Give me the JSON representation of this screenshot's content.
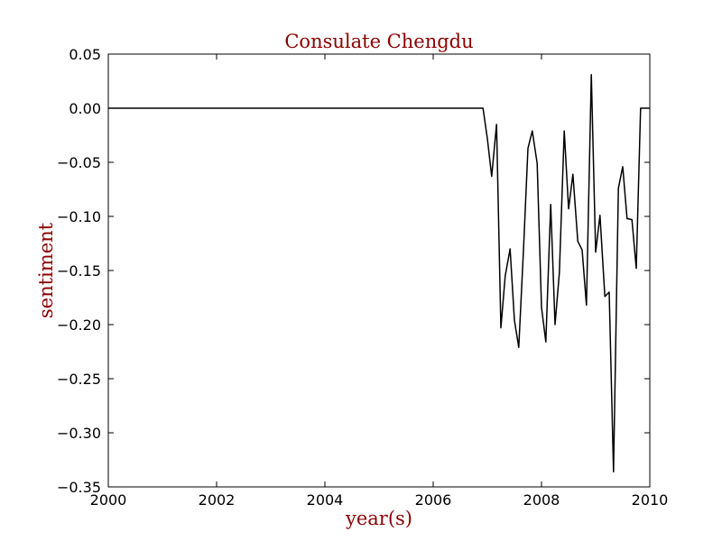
{
  "chart_data": {
    "type": "line",
    "title": "Consulate Chengdu",
    "xlabel": "year(s)",
    "ylabel": "sentiment",
    "xlim": [
      2000,
      2010
    ],
    "ylim": [
      -0.35,
      0.05
    ],
    "x_ticks": [
      2000,
      2002,
      2004,
      2006,
      2008,
      2010
    ],
    "x_tick_labels": [
      "2000",
      "2002",
      "2004",
      "2006",
      "2008",
      "2010"
    ],
    "y_ticks": [
      0.05,
      0.0,
      -0.05,
      -0.1,
      -0.15,
      -0.2,
      -0.25,
      -0.3,
      -0.35
    ],
    "y_tick_labels": [
      "0.05",
      "0.00",
      "−0.05",
      "−0.10",
      "−0.15",
      "−0.20",
      "−0.25",
      "−0.30",
      "−0.35"
    ],
    "grid": false,
    "line_color": "#000000",
    "label_color": "#8b0000",
    "series": [
      {
        "x": [
          2000.0,
          2006.92,
          2007.0,
          2007.08,
          2007.17,
          2007.25,
          2007.33,
          2007.42,
          2007.5,
          2007.58,
          2007.67,
          2007.75,
          2007.83,
          2007.92,
          2008.0,
          2008.08,
          2008.17,
          2008.25,
          2008.33,
          2008.42,
          2008.5,
          2008.58,
          2008.67,
          2008.75,
          2008.83,
          2008.92,
          2009.0,
          2009.08,
          2009.17,
          2009.25,
          2009.33,
          2009.42,
          2009.5,
          2009.58,
          2009.67,
          2009.75,
          2009.83,
          2009.92,
          2010.0
        ],
        "y": [
          0.0,
          0.0,
          -0.028,
          -0.063,
          -0.015,
          -0.203,
          -0.155,
          -0.13,
          -0.196,
          -0.221,
          -0.128,
          -0.037,
          -0.021,
          -0.051,
          -0.184,
          -0.216,
          -0.089,
          -0.2,
          -0.152,
          -0.021,
          -0.093,
          -0.061,
          -0.123,
          -0.131,
          -0.182,
          0.031,
          -0.133,
          -0.099,
          -0.174,
          -0.17,
          -0.336,
          -0.074,
          -0.054,
          -0.102,
          -0.103,
          -0.148,
          0.0,
          0.0,
          0.0
        ]
      }
    ]
  }
}
